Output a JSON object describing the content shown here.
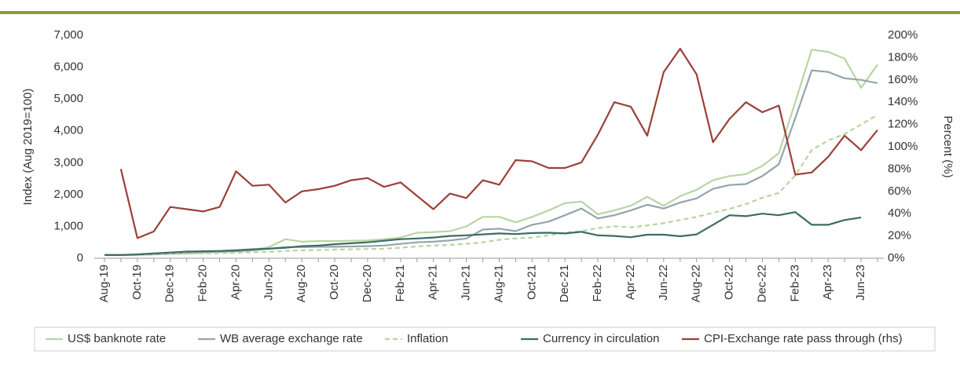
{
  "chart_data": {
    "type": "line",
    "ylabel": "Index (Aug 2019=100)",
    "y2label": "Percent (%)",
    "categories": [
      "Aug-19",
      null,
      "Oct-19",
      null,
      "Dec-19",
      null,
      "Feb-20",
      null,
      "Apr-20",
      null,
      "Jun-20",
      null,
      "Aug-20",
      null,
      "Oct-20",
      null,
      "Dec-20",
      null,
      "Feb-21",
      null,
      "Apr-21",
      null,
      "Jun-21",
      null,
      "Aug-21",
      null,
      "Oct-21",
      null,
      "Dec-21",
      null,
      "Feb-22",
      null,
      "Apr-22",
      null,
      "Jun-22",
      null,
      "Aug-22",
      null,
      "Oct-22",
      null,
      "Dec-22",
      null,
      "Feb-23",
      null,
      "Apr-23",
      null,
      "Jun-23",
      null
    ],
    "ylim": [
      0,
      7000
    ],
    "yticks": [
      0,
      {
        "value": 1000,
        "label": "1,000"
      },
      {
        "value": 2000,
        "label": "2,000"
      },
      {
        "value": 3000,
        "label": "3,000"
      },
      {
        "value": 4000,
        "label": "4,000"
      },
      {
        "value": 5000,
        "label": "5,000"
      },
      {
        "value": 6000,
        "label": "6,000"
      },
      {
        "value": 7000,
        "label": "7,000"
      }
    ],
    "y2lim": [
      0,
      200
    ],
    "y2ticks": [
      {
        "value": 0,
        "label": "0%"
      },
      {
        "value": 20,
        "label": "20%"
      },
      {
        "value": 40,
        "label": "40%"
      },
      {
        "value": 60,
        "label": "60%"
      },
      {
        "value": 80,
        "label": "80%"
      },
      {
        "value": 100,
        "label": "100%"
      },
      {
        "value": 120,
        "label": "120%"
      },
      {
        "value": 140,
        "label": "140%"
      },
      {
        "value": 160,
        "label": "160%"
      },
      {
        "value": 180,
        "label": "180%"
      },
      {
        "value": 200,
        "label": "200%"
      }
    ],
    "legend": "bottom",
    "series": [
      {
        "name": "US$ banknote rate",
        "color": "#b8d5a3",
        "dash": false,
        "values": [
          100,
          100,
          110,
          130,
          150,
          170,
          190,
          200,
          220,
          260,
          350,
          600,
          520,
          540,
          540,
          550,
          560,
          600,
          650,
          800,
          820,
          850,
          1000,
          1300,
          1300,
          1130,
          1300,
          1500,
          1730,
          1780,
          1380,
          1500,
          1650,
          1930,
          1650,
          1950,
          2150,
          2450,
          2580,
          2640,
          2900,
          3300,
          4900,
          6550,
          6480,
          6270,
          5350,
          6080
        ]
      },
      {
        "name": "WB average exchange rate",
        "color": "#95a4ae",
        "dash": false,
        "values": [
          100,
          100,
          110,
          120,
          140,
          160,
          180,
          200,
          220,
          250,
          300,
          350,
          350,
          360,
          360,
          370,
          380,
          400,
          450,
          500,
          520,
          560,
          620,
          900,
          930,
          850,
          1050,
          1150,
          1350,
          1560,
          1250,
          1350,
          1500,
          1680,
          1560,
          1750,
          1880,
          2180,
          2300,
          2330,
          2580,
          2950,
          4400,
          5900,
          5850,
          5650,
          5600,
          5500
        ]
      },
      {
        "name": "Inflation",
        "color": "#b9d4a0",
        "dash": true,
        "values": [
          100,
          100,
          110,
          120,
          130,
          140,
          150,
          160,
          170,
          190,
          200,
          230,
          250,
          260,
          270,
          280,
          290,
          300,
          330,
          370,
          400,
          420,
          450,
          500,
          580,
          620,
          650,
          720,
          800,
          850,
          950,
          1000,
          970,
          1030,
          1100,
          1200,
          1300,
          1430,
          1550,
          1700,
          1900,
          2050,
          2600,
          3400,
          3700,
          3900,
          4200,
          4500
        ]
      },
      {
        "name": "Currency in circulation",
        "color": "#3e6b64",
        "dash": false,
        "values": [
          100,
          100,
          120,
          150,
          180,
          210,
          220,
          230,
          250,
          280,
          300,
          330,
          380,
          400,
          440,
          470,
          500,
          550,
          600,
          620,
          650,
          700,
          720,
          750,
          780,
          760,
          790,
          800,
          780,
          830,
          720,
          700,
          660,
          740,
          740,
          690,
          750,
          1050,
          1350,
          1320,
          1400,
          1350,
          1450,
          1050,
          1050,
          1200,
          1280,
          null
        ]
      },
      {
        "name": "CPI-Exchange rate pass through (rhs)",
        "color": "#9b4038",
        "dash": false,
        "axis": "y2",
        "values": [
          null,
          80,
          18,
          24,
          46,
          44,
          42,
          46,
          78,
          65,
          66,
          50,
          60,
          62,
          65,
          70,
          72,
          64,
          68,
          56,
          44,
          58,
          54,
          70,
          66,
          88,
          87,
          81,
          81,
          86,
          111,
          140,
          136,
          110,
          167,
          188,
          165,
          104,
          125,
          140,
          131,
          137,
          75,
          77,
          91,
          110,
          97,
          115
        ]
      }
    ]
  }
}
